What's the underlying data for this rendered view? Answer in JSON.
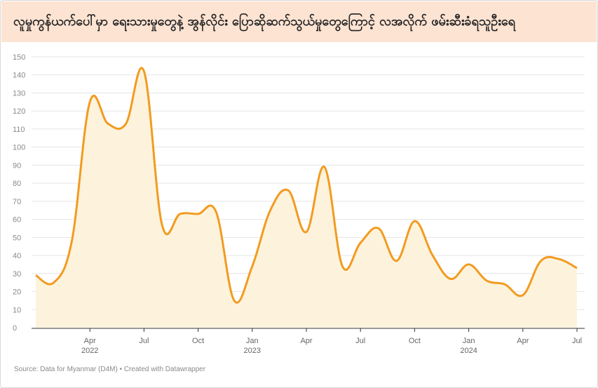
{
  "header": {
    "title": "လူမှုကွန်ယက်ပေါ်မှာ ရေးသားမှုတွေနဲ့ အွန်လိုင်း ပြောဆိုဆက်သွယ်မှုတွေကြောင့် လအလိုက် ဖမ်းဆီးခံရသူဦးရေ"
  },
  "footer": {
    "source": "Source: Data for Myanmar (D4M) • Created with Datawrapper"
  },
  "colors": {
    "line": "#f29b21",
    "area": "#fdf3dc",
    "title_bg": "#fde3d2",
    "grid": "#e5e5e5"
  },
  "chart_data": {
    "type": "area",
    "title": "လူမှုကွန်ယက်ပေါ်မှာ ရေးသားမှုတွေနဲ့ အွန်လိုင်း ပြောဆိုဆက်သွယ်မှုတွေကြောင့် လအလိုက် ဖမ်းဆီးခံရသူဦးရေ",
    "xlabel": "",
    "ylabel": "",
    "ylim": [
      0,
      150
    ],
    "y_ticks": [
      0,
      10,
      20,
      30,
      40,
      50,
      60,
      70,
      80,
      90,
      100,
      110,
      120,
      130,
      140,
      150
    ],
    "x_ticks": [
      {
        "date": "2022-04",
        "label": "Apr",
        "year": "2022"
      },
      {
        "date": "2022-07",
        "label": "Jul",
        "year": ""
      },
      {
        "date": "2022-10",
        "label": "Oct",
        "year": ""
      },
      {
        "date": "2023-01",
        "label": "Jan",
        "year": "2023"
      },
      {
        "date": "2023-04",
        "label": "Apr",
        "year": ""
      },
      {
        "date": "2023-07",
        "label": "Jul",
        "year": ""
      },
      {
        "date": "2023-10",
        "label": "Oct",
        "year": ""
      },
      {
        "date": "2024-01",
        "label": "Jan",
        "year": "2024"
      },
      {
        "date": "2024-04",
        "label": "Apr",
        "year": ""
      },
      {
        "date": "2024-07",
        "label": "Jul",
        "year": ""
      }
    ],
    "grid": true,
    "x": [
      "2022-01",
      "2022-02",
      "2022-03",
      "2022-04",
      "2022-05",
      "2022-06",
      "2022-07",
      "2022-08",
      "2022-09",
      "2022-10",
      "2022-11",
      "2022-12",
      "2023-01",
      "2023-02",
      "2023-03",
      "2023-04",
      "2023-05",
      "2023-06",
      "2023-07",
      "2023-08",
      "2023-09",
      "2023-10",
      "2023-11",
      "2023-12",
      "2024-01",
      "2024-02",
      "2024-03",
      "2024-04",
      "2024-05",
      "2024-06",
      "2024-07"
    ],
    "values": [
      29,
      25,
      48,
      125,
      113,
      113,
      142,
      57,
      63,
      63,
      64,
      15,
      34,
      65,
      76,
      53,
      89,
      34,
      47,
      55,
      37,
      59,
      40,
      27,
      35,
      26,
      24,
      18,
      37,
      38,
      33
    ]
  }
}
